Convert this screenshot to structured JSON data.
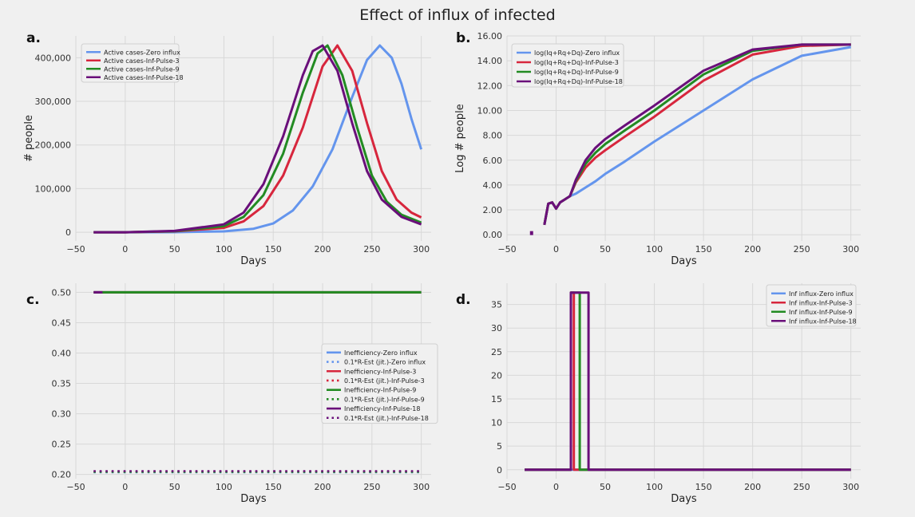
{
  "figure_title": "Effect of influx of infected",
  "colors": {
    "zero": "#6495ed",
    "pulse3": "#d7263d",
    "pulse9": "#228b22",
    "pulse18": "#6a0f7a"
  },
  "chart_data": [
    {
      "panel": "a.",
      "type": "line",
      "xlabel": "Days",
      "ylabel": "# people",
      "xlim": [
        -50,
        310
      ],
      "ylim": [
        -20000,
        450000
      ],
      "xticks": [
        -50,
        0,
        50,
        100,
        150,
        200,
        250,
        300
      ],
      "yticks": [
        0,
        100000,
        200000,
        300000,
        400000
      ],
      "ytick_labels": [
        "0",
        "100,000",
        "200,000",
        "300,000",
        "400,000"
      ],
      "legend_position": "top-left",
      "grid": true,
      "series": [
        {
          "name": "Active cases-Zero influx",
          "color": "#6495ed",
          "x": [
            -32,
            0,
            50,
            100,
            130,
            150,
            170,
            190,
            210,
            230,
            245,
            258,
            270,
            280,
            290,
            300
          ],
          "y": [
            0,
            0,
            200,
            2000,
            8000,
            20000,
            50000,
            105000,
            190000,
            310000,
            395000,
            428000,
            400000,
            340000,
            260000,
            190000
          ]
        },
        {
          "name": "Active cases-Inf-Pulse-3",
          "color": "#d7263d",
          "x": [
            -32,
            0,
            50,
            100,
            120,
            140,
            160,
            180,
            200,
            215,
            230,
            245,
            260,
            275,
            290,
            300
          ],
          "y": [
            0,
            0,
            2000,
            10000,
            25000,
            60000,
            130000,
            240000,
            380000,
            428000,
            370000,
            250000,
            140000,
            75000,
            45000,
            34000
          ]
        },
        {
          "name": "Active cases-Inf-Pulse-9",
          "color": "#228b22",
          "x": [
            -32,
            0,
            50,
            100,
            120,
            140,
            160,
            180,
            195,
            205,
            220,
            235,
            250,
            265,
            280,
            300
          ],
          "y": [
            0,
            0,
            2500,
            14000,
            35000,
            85000,
            180000,
            320000,
            410000,
            428000,
            360000,
            240000,
            130000,
            70000,
            40000,
            22000
          ]
        },
        {
          "name": "Active cases-Inf-Pulse-18",
          "color": "#6a0f7a",
          "x": [
            -32,
            0,
            50,
            100,
            120,
            140,
            160,
            180,
            190,
            200,
            215,
            230,
            245,
            260,
            280,
            300
          ],
          "y": [
            0,
            0,
            3000,
            18000,
            45000,
            110000,
            220000,
            360000,
            415000,
            428000,
            370000,
            250000,
            140000,
            75000,
            35000,
            18000
          ]
        }
      ]
    },
    {
      "panel": "b.",
      "type": "line",
      "xlabel": "Days",
      "ylabel": "Log # people",
      "xlim": [
        -50,
        310
      ],
      "ylim": [
        -0.5,
        16.0
      ],
      "xticks": [
        -50,
        0,
        50,
        100,
        150,
        200,
        250,
        300
      ],
      "yticks": [
        0,
        2,
        4,
        6,
        8,
        10,
        12,
        14,
        16
      ],
      "ytick_labels": [
        "0.00",
        "2.00",
        "4.00",
        "6.00",
        "8.00",
        "10.00",
        "12.00",
        "14.00",
        "16.00"
      ],
      "legend_position": "top-left",
      "grid": true,
      "series": [
        {
          "name": "log(Iq+Rq+Dq)-Zero influx",
          "color": "#6495ed",
          "x": [
            -12,
            -8,
            -4,
            0,
            4,
            8,
            14,
            20,
            30,
            40,
            50,
            70,
            100,
            150,
            200,
            250,
            300
          ],
          "y": [
            0.8,
            2.5,
            2.6,
            2.1,
            2.6,
            2.8,
            3.1,
            3.3,
            3.8,
            4.3,
            4.9,
            5.9,
            7.5,
            10.0,
            12.5,
            14.4,
            15.1
          ]
        },
        {
          "name": "log(Iq+Rq+Dq)-Inf-Pulse-3",
          "color": "#d7263d",
          "x": [
            -12,
            -8,
            -4,
            0,
            4,
            8,
            14,
            20,
            30,
            40,
            50,
            70,
            100,
            150,
            200,
            250,
            300
          ],
          "y": [
            0.8,
            2.5,
            2.6,
            2.1,
            2.6,
            2.8,
            3.1,
            4.2,
            5.4,
            6.2,
            6.8,
            7.9,
            9.5,
            12.4,
            14.5,
            15.2,
            15.3
          ]
        },
        {
          "name": "log(Iq+Rq+Dq)-Inf-Pulse-9",
          "color": "#228b22",
          "x": [
            -12,
            -8,
            -4,
            0,
            4,
            8,
            14,
            20,
            30,
            40,
            50,
            70,
            100,
            150,
            200,
            250,
            300
          ],
          "y": [
            0.8,
            2.5,
            2.6,
            2.1,
            2.6,
            2.8,
            3.1,
            4.3,
            5.7,
            6.6,
            7.3,
            8.4,
            10.0,
            12.9,
            14.8,
            15.3,
            15.3
          ]
        },
        {
          "name": "log(Iq+Rq+Dq)-Inf-Pulse-18",
          "color": "#6a0f7a",
          "x": [
            -12,
            -8,
            -4,
            0,
            4,
            8,
            14,
            20,
            30,
            40,
            50,
            70,
            100,
            150,
            200,
            250,
            300
          ],
          "y": [
            0.8,
            2.5,
            2.6,
            2.1,
            2.6,
            2.8,
            3.1,
            4.4,
            6.0,
            7.0,
            7.7,
            8.8,
            10.4,
            13.2,
            14.9,
            15.3,
            15.3
          ]
        }
      ],
      "extra_points": [
        {
          "x": -25,
          "y": 0.1,
          "color": "#6a0f7a"
        }
      ]
    },
    {
      "panel": "c.",
      "type": "line",
      "xlabel": "Days",
      "ylabel": "",
      "xlim": [
        -50,
        310
      ],
      "ylim": [
        0.193,
        0.515
      ],
      "xticks": [
        -50,
        0,
        50,
        100,
        150,
        200,
        250,
        300
      ],
      "yticks": [
        0.2,
        0.25,
        0.3,
        0.35,
        0.4,
        0.45,
        0.5
      ],
      "ytick_labels": [
        "0.20",
        "0.25",
        "0.30",
        "0.35",
        "0.40",
        "0.45",
        "0.50"
      ],
      "legend_position": "center-right",
      "grid": true,
      "series": [
        {
          "name": "Inefficiency-Zero influx",
          "color": "#6495ed",
          "style": "solid",
          "x": [
            -32,
            300
          ],
          "y": [
            0.5,
            0.5
          ]
        },
        {
          "name": "0.1*R-Est (jit.)-Zero influx",
          "color": "#6495ed",
          "style": "dotted",
          "x": [
            -32,
            300
          ],
          "y": [
            0.2035,
            0.2035
          ]
        },
        {
          "name": "Inefficiency-Inf-Pulse-3",
          "color": "#d7263d",
          "style": "solid",
          "x": [
            -32,
            300
          ],
          "y": [
            0.5,
            0.5
          ]
        },
        {
          "name": "0.1*R-Est (jit.)-Inf-Pulse-3",
          "color": "#d7263d",
          "style": "dotted",
          "x": [
            -32,
            300
          ],
          "y": [
            0.205,
            0.205
          ]
        },
        {
          "name": "Inefficiency-Inf-Pulse-9",
          "color": "#228b22",
          "style": "solid",
          "x": [
            -32,
            300
          ],
          "y": [
            0.5,
            0.5
          ]
        },
        {
          "name": "0.1*R-Est (jit.)-Inf-Pulse-9",
          "color": "#228b22",
          "style": "dotted",
          "x": [
            -32,
            300
          ],
          "y": [
            0.2042,
            0.2042
          ]
        },
        {
          "name": "Inefficiency-Inf-Pulse-18",
          "color": "#6a0f7a",
          "style": "solid",
          "x": [
            -32,
            -23,
            -20,
            300
          ],
          "y": [
            0.5,
            0.5,
            null,
            0.5
          ]
        },
        {
          "name": "0.1*R-Est (jit.)-Inf-Pulse-18",
          "color": "#6a0f7a",
          "style": "dotted",
          "x": [
            -32,
            300
          ],
          "y": [
            0.2055,
            0.2055
          ]
        }
      ]
    },
    {
      "panel": "d.",
      "type": "line",
      "xlabel": "Days",
      "ylabel": "",
      "xlim": [
        -50,
        310
      ],
      "ylim": [
        -1.9,
        39.5
      ],
      "xticks": [
        -50,
        0,
        50,
        100,
        150,
        200,
        250,
        300
      ],
      "yticks": [
        0,
        5,
        10,
        15,
        20,
        25,
        30,
        35
      ],
      "ytick_labels": [
        "0",
        "5",
        "10",
        "15",
        "20",
        "25",
        "30",
        "35"
      ],
      "legend_position": "top-right",
      "grid": true,
      "series": [
        {
          "name": "Inf influx-Zero influx",
          "color": "#6495ed",
          "x": [
            -32,
            300
          ],
          "y": [
            0,
            0
          ]
        },
        {
          "name": "Inf influx-Inf-Pulse-3",
          "color": "#d7263d",
          "x": [
            -32,
            15,
            15,
            18,
            18,
            300
          ],
          "y": [
            0,
            0,
            37.5,
            37.5,
            0,
            0
          ]
        },
        {
          "name": "Inf influx-Inf-Pulse-9",
          "color": "#228b22",
          "x": [
            -32,
            15,
            15,
            24,
            24,
            300
          ],
          "y": [
            0,
            0,
            37.5,
            37.5,
            0,
            0
          ]
        },
        {
          "name": "Inf influx-Inf-Pulse-18",
          "color": "#6a0f7a",
          "x": [
            -32,
            15,
            15,
            33,
            33,
            300
          ],
          "y": [
            0,
            0,
            37.5,
            37.5,
            0,
            0
          ]
        }
      ]
    }
  ]
}
